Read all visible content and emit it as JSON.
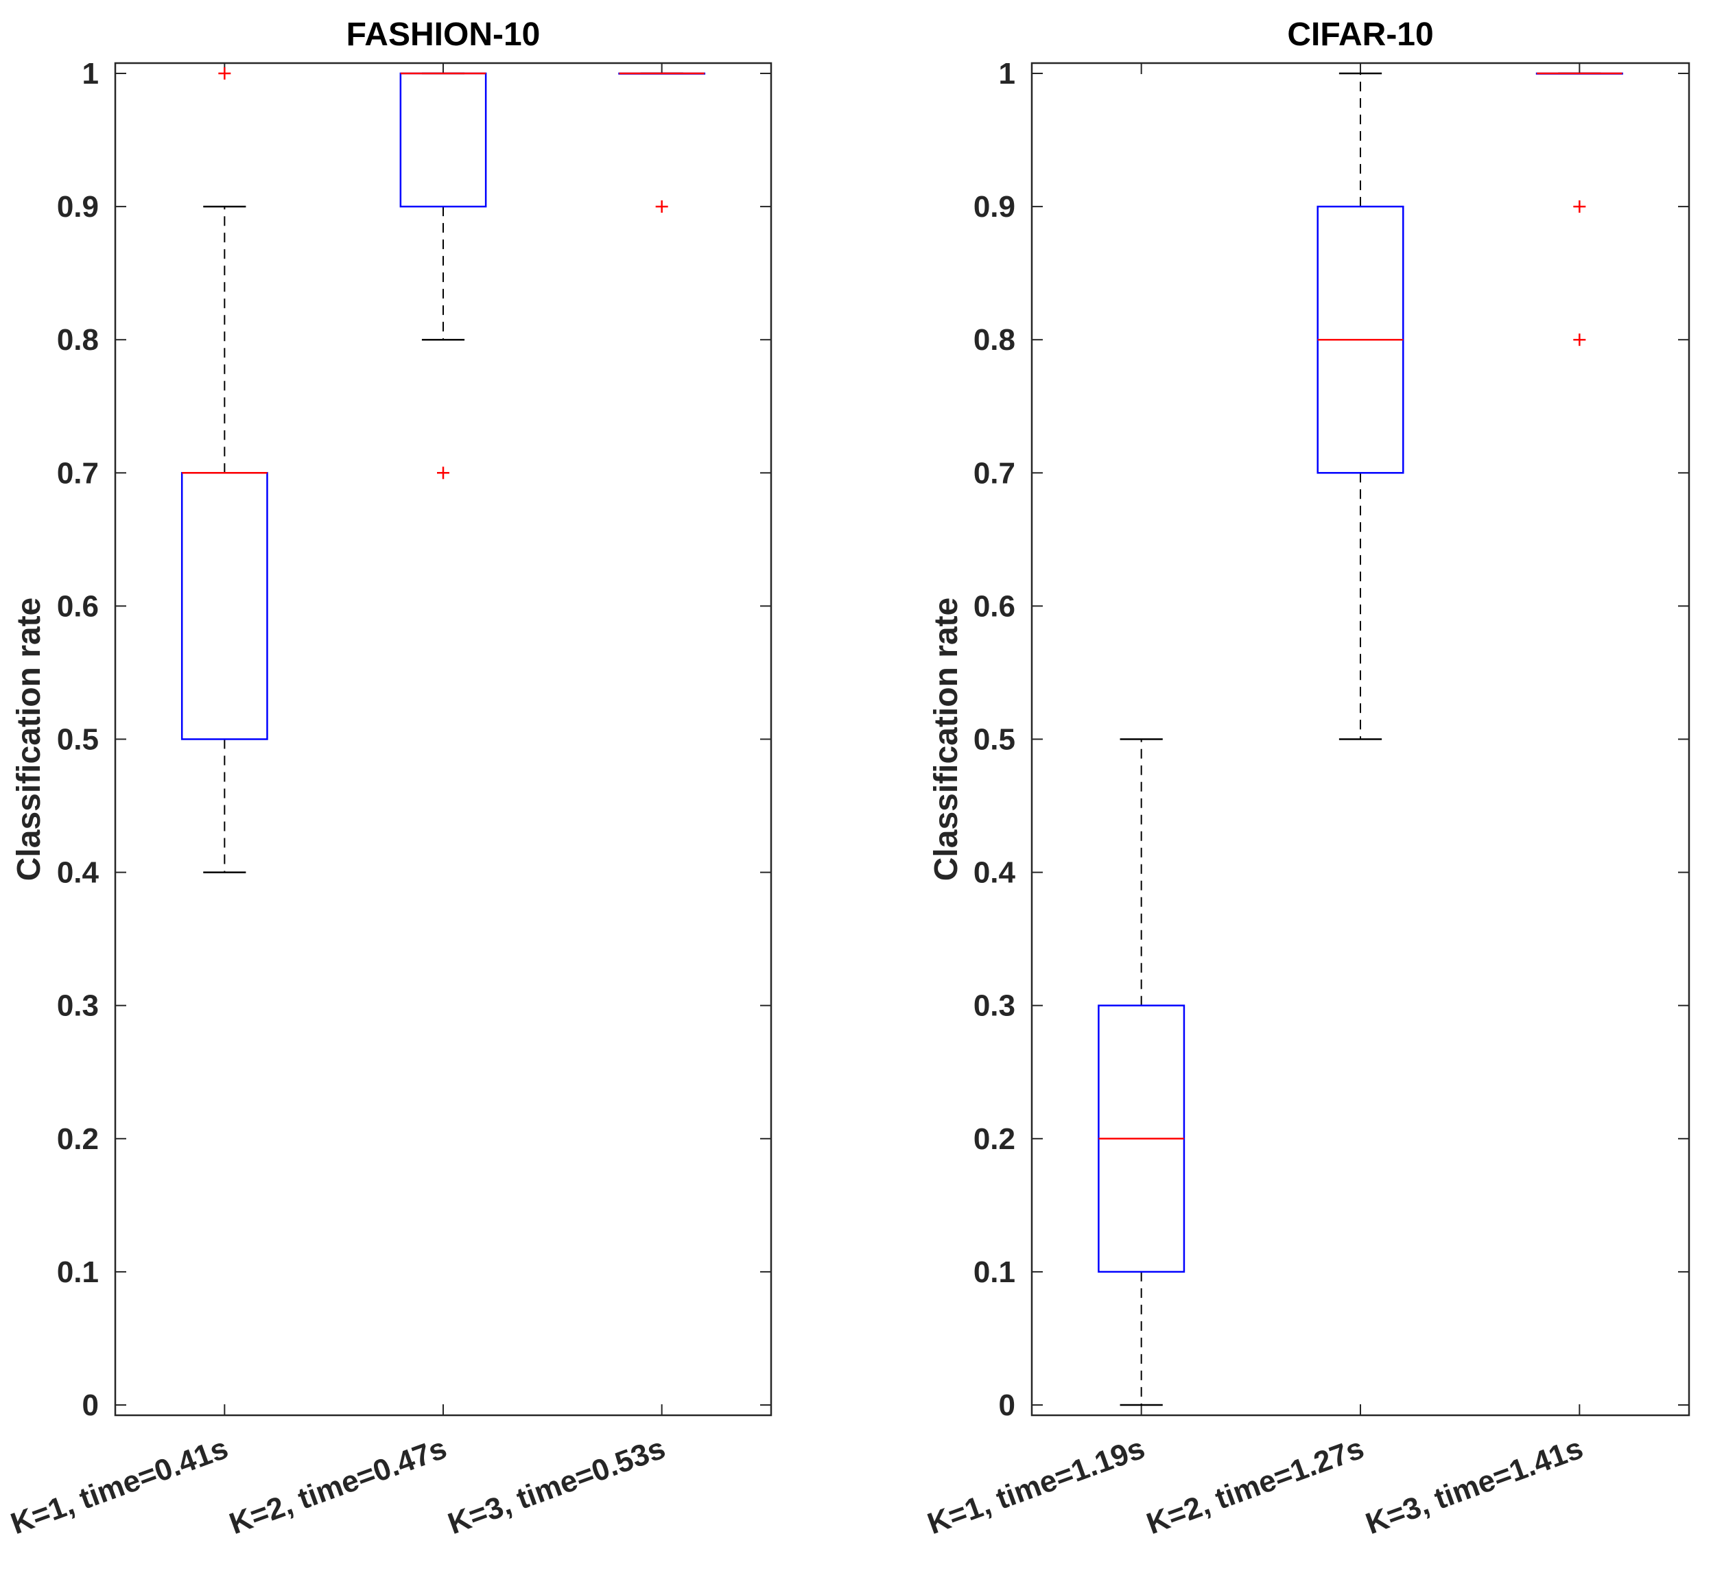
{
  "chart_data": [
    {
      "type": "boxplot",
      "title": "FASHION-10",
      "xlabel": "",
      "ylabel": "Classification rate",
      "ylim": [
        0,
        1
      ],
      "yticks": [
        "0",
        "0.1",
        "0.2",
        "0.3",
        "0.4",
        "0.5",
        "0.6",
        "0.7",
        "0.8",
        "0.9",
        "1"
      ],
      "categories": [
        "K=1, time=0.41s",
        "K=2, time=0.47s",
        "K=3, time=0.53s"
      ],
      "boxes": [
        {
          "q1": 0.5,
          "median": 0.7,
          "q3": 0.7,
          "whisker_low": 0.4,
          "whisker_high": 0.9,
          "outliers": [
            1.0
          ]
        },
        {
          "q1": 0.9,
          "median": 1.0,
          "q3": 1.0,
          "whisker_low": 0.8,
          "whisker_high": 1.0,
          "outliers": [
            0.7
          ]
        },
        {
          "q1": 1.0,
          "median": 1.0,
          "q3": 1.0,
          "whisker_low": 1.0,
          "whisker_high": 1.0,
          "outliers": [
            0.9
          ]
        }
      ],
      "colors": {
        "box": "#0000ff",
        "median": "#ff0000",
        "whisker": "#000000",
        "outlier": "#ff0000"
      }
    },
    {
      "type": "boxplot",
      "title": "CIFAR-10",
      "xlabel": "",
      "ylabel": "Classification rate",
      "ylim": [
        0,
        1
      ],
      "yticks": [
        "0",
        "0.1",
        "0.2",
        "0.3",
        "0.4",
        "0.5",
        "0.6",
        "0.7",
        "0.8",
        "0.9",
        "1"
      ],
      "categories": [
        "K=1, time=1.19s",
        "K=2, time=1.27s",
        "K=3, time=1.41s"
      ],
      "boxes": [
        {
          "q1": 0.1,
          "median": 0.2,
          "q3": 0.3,
          "whisker_low": 0.0,
          "whisker_high": 0.5,
          "outliers": []
        },
        {
          "q1": 0.7,
          "median": 0.8,
          "q3": 0.9,
          "whisker_low": 0.5,
          "whisker_high": 1.0,
          "outliers": []
        },
        {
          "q1": 1.0,
          "median": 1.0,
          "q3": 1.0,
          "whisker_low": 1.0,
          "whisker_high": 1.0,
          "outliers": [
            0.9,
            0.8
          ]
        }
      ],
      "colors": {
        "box": "#0000ff",
        "median": "#ff0000",
        "whisker": "#000000",
        "outlier": "#ff0000"
      }
    }
  ]
}
